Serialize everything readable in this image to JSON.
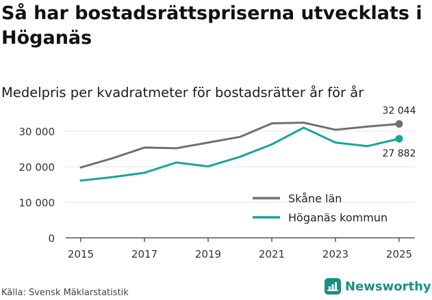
{
  "title": "Så har bostadsrättspriserna utvecklats i Höganäs",
  "subtitle": "Medelpris per kvadratmeter för bostadsrätter år för år",
  "source": "Källa: Svensk Mäklarstatistik",
  "brand": {
    "name": "Newsworthy",
    "icon": "newsworthy-logo-icon",
    "color": "#1b8f86"
  },
  "chart_data": {
    "type": "line",
    "x": [
      2015,
      2016,
      2017,
      2018,
      2019,
      2020,
      2021,
      2022,
      2023,
      2024,
      2025
    ],
    "xticks": [
      2015,
      2017,
      2019,
      2021,
      2023,
      2025
    ],
    "xtick_labels": [
      "2015",
      "2017",
      "2019",
      "2021",
      "2023",
      "2025"
    ],
    "yticks": [
      0,
      10000,
      20000,
      30000
    ],
    "ytick_labels": [
      "0",
      "10 000",
      "20 000",
      "30 000"
    ],
    "ylim": [
      0,
      35000
    ],
    "xlim": [
      2014.5,
      2025.5
    ],
    "grid": true,
    "legend_position": "bottom-right",
    "series": [
      {
        "name": "Skåne län",
        "color": "#707070",
        "values": [
          19800,
          22400,
          25400,
          25200,
          26800,
          28400,
          32200,
          32400,
          30400,
          31300,
          32044
        ],
        "end_label": "32 044",
        "end_label_position": "above"
      },
      {
        "name": "Höganäs kommun",
        "color": "#18a499",
        "values": [
          16100,
          17100,
          18300,
          21200,
          20100,
          22800,
          26300,
          31000,
          26800,
          25800,
          27882
        ],
        "end_label": "27 882",
        "end_label_position": "below"
      }
    ]
  }
}
